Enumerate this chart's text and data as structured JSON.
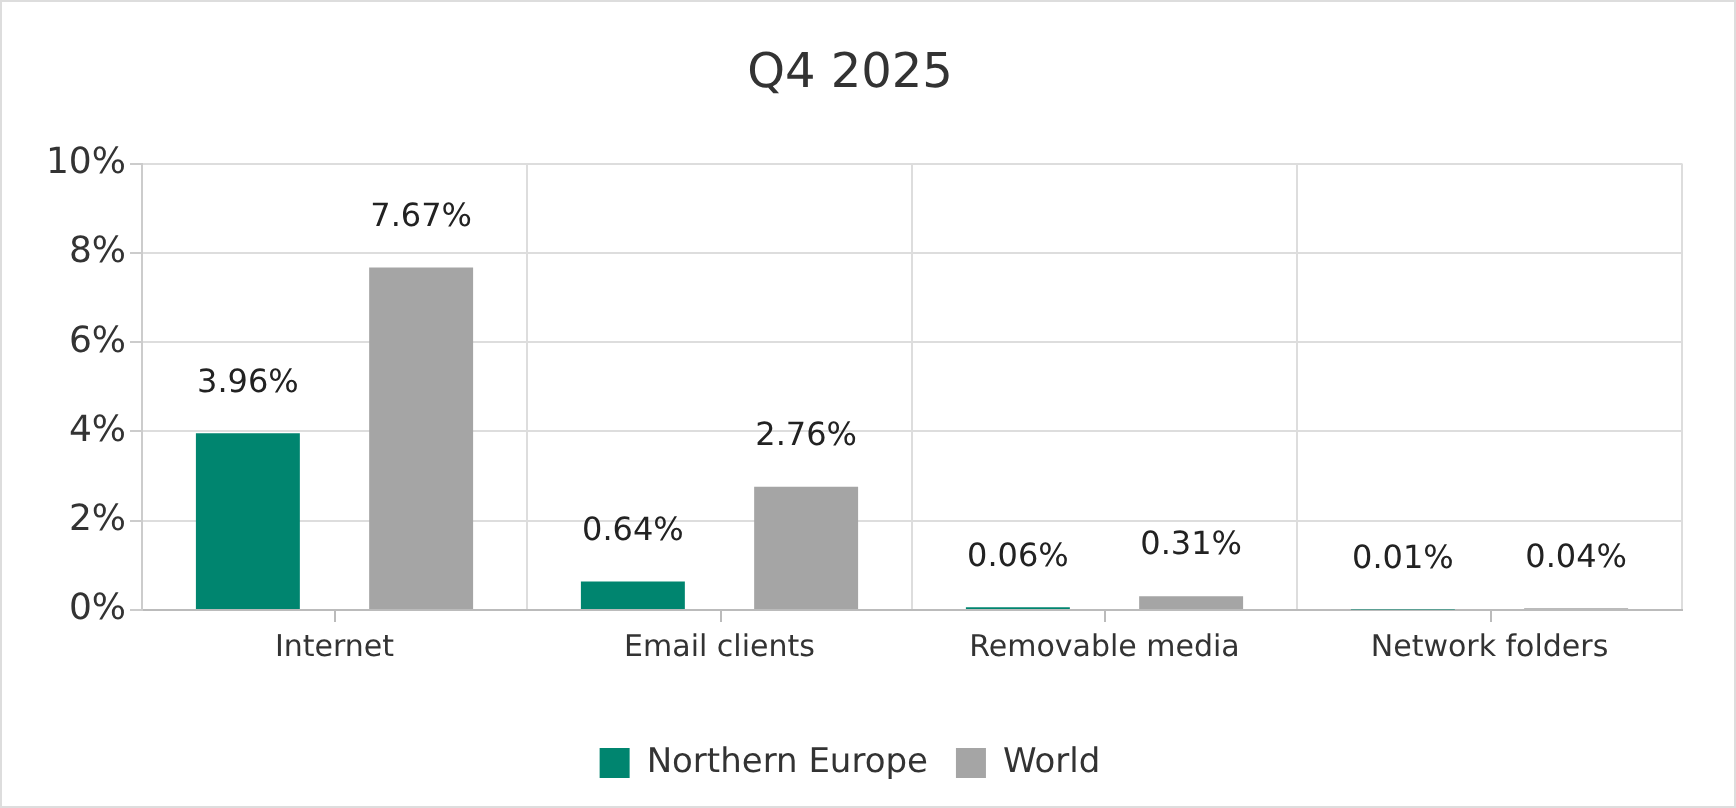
{
  "chart_data": {
    "type": "bar",
    "title": "Q4 2025",
    "categories": [
      "Internet",
      "Email clients",
      "Removable media",
      "Network folders"
    ],
    "series": [
      {
        "name": "Northern Europe",
        "color": "#00856f",
        "values": [
          3.96,
          0.64,
          0.06,
          0.01
        ],
        "value_labels": [
          "3.96%",
          "0.64%",
          "0.06%",
          "0.01%"
        ]
      },
      {
        "name": "World",
        "color": "#a5a5a5",
        "values": [
          7.67,
          2.76,
          0.31,
          0.04
        ],
        "value_labels": [
          "7.67%",
          "2.76%",
          "0.31%",
          "0.04%"
        ]
      }
    ],
    "ylim": [
      0,
      10
    ],
    "yticks": [
      {
        "value": 0,
        "label": "0%"
      },
      {
        "value": 2,
        "label": "2%"
      },
      {
        "value": 4,
        "label": "4%"
      },
      {
        "value": 6,
        "label": "6%"
      },
      {
        "value": 8,
        "label": "8%"
      },
      {
        "value": 10,
        "label": "10%"
      }
    ],
    "grid": true,
    "legend": "bottom"
  }
}
